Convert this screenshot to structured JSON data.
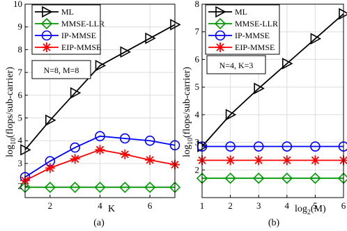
{
  "chart_data": [
    {
      "type": "line",
      "panel_label": "(a)",
      "xlabel": "K",
      "ylabel": "log10(flops/sub-carrier)",
      "xlim": [
        1,
        7
      ],
      "ylim": [
        1.5,
        10
      ],
      "xticks": [
        2,
        4,
        6
      ],
      "yticks": [
        2,
        3,
        4,
        5,
        6,
        7,
        8,
        9,
        10
      ],
      "grid": true,
      "x": [
        1,
        2,
        3,
        4,
        5,
        6,
        7
      ],
      "series": [
        {
          "name": "ML",
          "marker": "triangle-right",
          "color": "#000000",
          "values": [
            3.6,
            4.9,
            6.1,
            7.3,
            7.9,
            8.5,
            9.1
          ]
        },
        {
          "name": "MMSE-LLR",
          "marker": "diamond",
          "color": "#009900",
          "values": [
            1.95,
            1.95,
            1.95,
            1.95,
            1.95,
            1.95,
            1.95
          ]
        },
        {
          "name": "IP-MMSE",
          "marker": "circle",
          "color": "#0000ff",
          "values": [
            2.4,
            3.1,
            3.7,
            4.2,
            4.1,
            4.0,
            3.8
          ]
        },
        {
          "name": "EIP-MMSE",
          "marker": "asterisk",
          "color": "#ff0000",
          "values": [
            2.25,
            2.8,
            3.2,
            3.6,
            3.4,
            3.15,
            2.95
          ]
        }
      ],
      "annotation": "N=8, M=8",
      "legend_position": "top-left"
    },
    {
      "type": "line",
      "panel_label": "(b)",
      "xlabel": "log2(M)",
      "ylabel": "log10(flops/sub-carrier)",
      "xlim": [
        1,
        6
      ],
      "ylim": [
        1,
        8
      ],
      "xticks": [
        1,
        2,
        3,
        4,
        5,
        6
      ],
      "yticks": [
        2,
        3,
        4,
        5,
        6,
        7,
        8
      ],
      "grid": true,
      "x": [
        1,
        2,
        3,
        4,
        5,
        6
      ],
      "series": [
        {
          "name": "ML",
          "marker": "triangle-right",
          "color": "#000000",
          "values": [
            2.85,
            4.0,
            4.95,
            5.85,
            6.75,
            7.65
          ]
        },
        {
          "name": "MMSE-LLR",
          "marker": "diamond",
          "color": "#009900",
          "values": [
            1.7,
            1.7,
            1.7,
            1.7,
            1.7,
            1.7
          ]
        },
        {
          "name": "IP-MMSE",
          "marker": "circle",
          "color": "#0000ff",
          "values": [
            2.85,
            2.85,
            2.85,
            2.85,
            2.85,
            2.85
          ]
        },
        {
          "name": "EIP-MMSE",
          "marker": "asterisk",
          "color": "#ff0000",
          "values": [
            2.35,
            2.35,
            2.35,
            2.35,
            2.35,
            2.35
          ]
        }
      ],
      "annotation": "N=4, K=3",
      "legend_position": "top-left"
    }
  ]
}
